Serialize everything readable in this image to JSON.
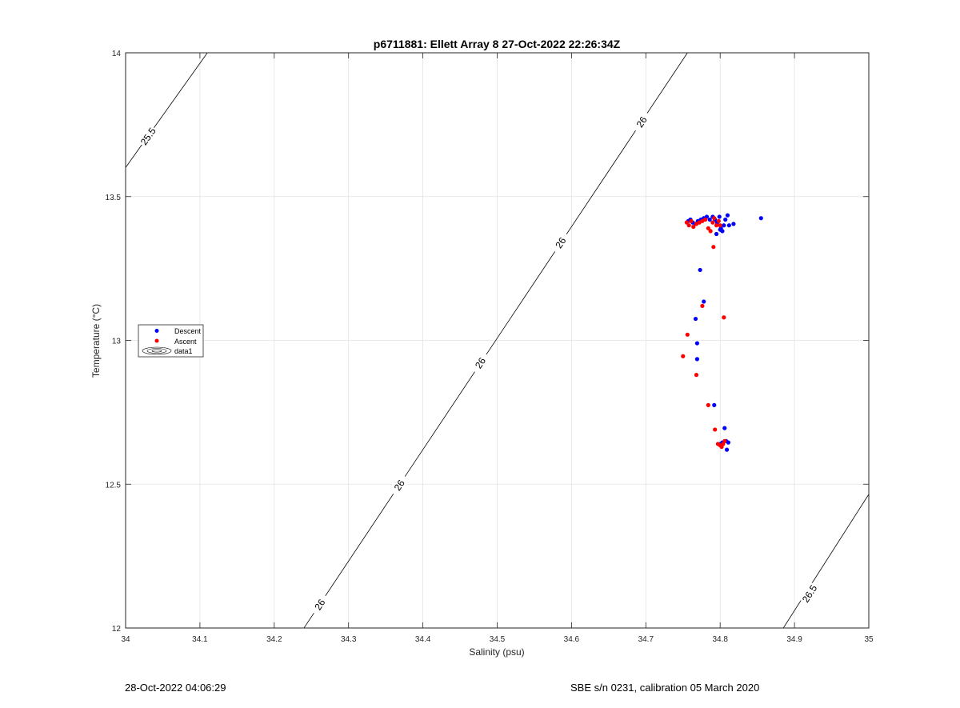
{
  "chart_data": {
    "type": "scatter",
    "title": "p6711881: Ellett Array 8 27-Oct-2022 22:26:34Z",
    "xlabel": "Salinity (psu)",
    "ylabel": "Temperature (°C)",
    "xlim": [
      34,
      35
    ],
    "ylim": [
      12,
      14
    ],
    "xticks": [
      34,
      34.1,
      34.2,
      34.3,
      34.4,
      34.5,
      34.6,
      34.7,
      34.8,
      34.9,
      35
    ],
    "xtick_labels": [
      "34",
      "34.1",
      "34.2",
      "34.3",
      "34.4",
      "34.5",
      "34.6",
      "34.7",
      "34.8",
      "34.9",
      "35"
    ],
    "yticks": [
      12,
      12.5,
      13,
      13.5,
      14
    ],
    "ytick_labels": [
      "12",
      "12.5",
      "13",
      "13.5",
      "14"
    ],
    "grid": true,
    "legend_position": "left-middle",
    "series": [
      {
        "name": "Descent",
        "color": "#0000ff",
        "points": [
          [
            34.757,
            13.415
          ],
          [
            34.76,
            13.42
          ],
          [
            34.763,
            13.41
          ],
          [
            34.767,
            13.405
          ],
          [
            34.77,
            13.415
          ],
          [
            34.774,
            13.42
          ],
          [
            34.778,
            13.425
          ],
          [
            34.782,
            13.43
          ],
          [
            34.786,
            13.42
          ],
          [
            34.79,
            13.43
          ],
          [
            34.793,
            13.42
          ],
          [
            34.796,
            13.41
          ],
          [
            34.799,
            13.43
          ],
          [
            34.801,
            13.39
          ],
          [
            34.803,
            13.38
          ],
          [
            34.805,
            13.4
          ],
          [
            34.807,
            13.42
          ],
          [
            34.81,
            13.435
          ],
          [
            34.812,
            13.4
          ],
          [
            34.818,
            13.405
          ],
          [
            34.855,
            13.425
          ],
          [
            34.795,
            13.37
          ],
          [
            34.8,
            13.385
          ],
          [
            34.773,
            13.245
          ],
          [
            34.778,
            13.135
          ],
          [
            34.767,
            13.075
          ],
          [
            34.769,
            12.99
          ],
          [
            34.769,
            12.935
          ],
          [
            34.792,
            12.775
          ],
          [
            34.806,
            12.695
          ],
          [
            34.803,
            12.645
          ],
          [
            34.808,
            12.65
          ],
          [
            34.811,
            12.645
          ],
          [
            34.809,
            12.62
          ],
          [
            34.8,
            12.64
          ]
        ]
      },
      {
        "name": "Ascent",
        "color": "#ff0000",
        "points": [
          [
            34.755,
            13.41
          ],
          [
            34.758,
            13.4
          ],
          [
            34.761,
            13.415
          ],
          [
            34.764,
            13.395
          ],
          [
            34.768,
            13.405
          ],
          [
            34.772,
            13.41
          ],
          [
            34.776,
            13.415
          ],
          [
            34.78,
            13.42
          ],
          [
            34.784,
            13.39
          ],
          [
            34.787,
            13.38
          ],
          [
            34.79,
            13.41
          ],
          [
            34.792,
            13.425
          ],
          [
            34.795,
            13.4
          ],
          [
            34.798,
            13.415
          ],
          [
            34.8,
            13.4
          ],
          [
            34.791,
            13.325
          ],
          [
            34.776,
            13.12
          ],
          [
            34.805,
            13.08
          ],
          [
            34.756,
            13.02
          ],
          [
            34.75,
            12.945
          ],
          [
            34.768,
            12.88
          ],
          [
            34.784,
            12.775
          ],
          [
            34.793,
            12.69
          ],
          [
            34.797,
            12.64
          ],
          [
            34.8,
            12.635
          ],
          [
            34.804,
            12.64
          ],
          [
            34.806,
            12.65
          ],
          [
            34.802,
            12.63
          ]
        ]
      }
    ],
    "legend_extra": "data1",
    "contours": [
      {
        "label": "25.5",
        "segments": [
          {
            "s0": 33.997,
            "t0": 13.59,
            "s1": 34.11,
            "t1": 14.0
          }
        ],
        "label_positions": [
          {
            "s": 34.03,
            "t": 13.71
          }
        ]
      },
      {
        "label": "26",
        "segments": [
          {
            "s0": 34.24,
            "t0": 12.0,
            "s1": 34.756,
            "t1": 14.0
          }
        ],
        "label_positions": [
          {
            "s": 34.261,
            "t": 12.082
          },
          {
            "s": 34.368,
            "t": 12.497
          },
          {
            "s": 34.477,
            "t": 12.922
          },
          {
            "s": 34.585,
            "t": 13.34
          },
          {
            "s": 34.694,
            "t": 13.76
          }
        ]
      },
      {
        "label": "26.5",
        "segments": [
          {
            "s0": 34.885,
            "t0": 12.0,
            "s1": 35.0,
            "t1": 12.465
          }
        ],
        "label_positions": [
          {
            "s": 34.92,
            "t": 12.12
          }
        ]
      }
    ]
  },
  "footer": {
    "left": "28-Oct-2022 04:06:29",
    "right": "SBE s/n 0231, calibration 05 March 2020"
  }
}
